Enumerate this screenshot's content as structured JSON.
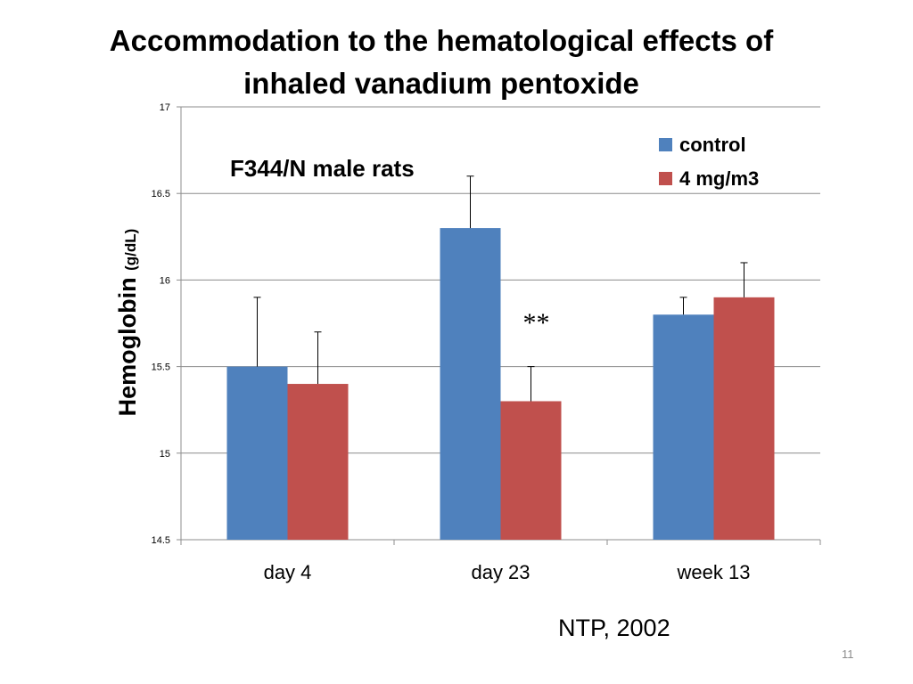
{
  "slide": {
    "title_line1": "Accommodation to the hematological effects of",
    "title_line2": "inhaled vanadium pentoxide",
    "source": "NTP, 2002",
    "slide_number": "11"
  },
  "chart_data": {
    "type": "bar",
    "title": "Accommodation to the hematological effects of inhaled vanadium pentoxide",
    "subtitle": "F344/N male rats",
    "ylabel_main": "Hemoglobin",
    "ylabel_unit": "(g/dL)",
    "xlabel": "",
    "ylim": [
      14.5,
      17
    ],
    "yticks": [
      14.5,
      15,
      15.5,
      16,
      16.5,
      17
    ],
    "grid": true,
    "legend_position": "top-right",
    "categories": [
      "day 4",
      "day 23",
      "week 13"
    ],
    "series": [
      {
        "name": "control",
        "color": "#4f81bd",
        "values": [
          15.5,
          16.3,
          15.8
        ],
        "error": [
          0.4,
          0.3,
          0.1
        ]
      },
      {
        "name": "4 mg/m3",
        "color": "#c0504d",
        "values": [
          15.4,
          15.3,
          15.9
        ],
        "error": [
          0.3,
          0.2,
          0.2
        ]
      }
    ],
    "annotations": [
      {
        "text": "**",
        "category": "day 23"
      }
    ]
  }
}
